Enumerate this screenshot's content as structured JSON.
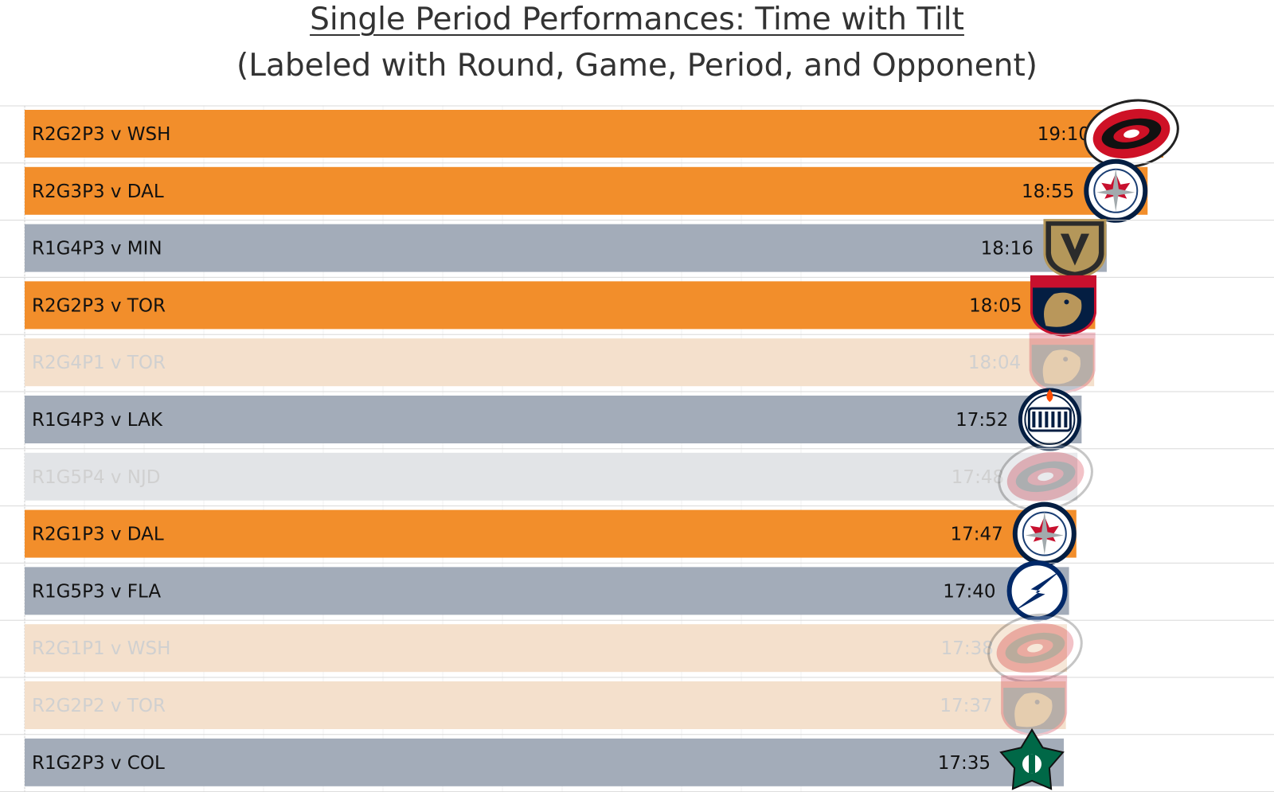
{
  "title": "Single Period Performances: Time with Tilt",
  "subtitle": "(Labeled with Round, Game, Period, and Opponent)",
  "colors": {
    "orange": "#F28E2B",
    "gray": "#A3ACB9",
    "orange_faded": "#F4E0CC",
    "gray_faded": "#E2E4E7",
    "row_line": "#d8d8d8"
  },
  "chart_data": {
    "type": "bar",
    "orientation": "horizontal",
    "title": "Single Period Performances: Time with Tilt",
    "subtitle": "(Labeled with Round, Game, Period, and Opponent)",
    "value_unit": "mm:ss",
    "grid": true,
    "rows": [
      {
        "label": "R2G2P3 v WSH",
        "time": "19:10",
        "seconds": 1150,
        "color": "orange",
        "faded": false,
        "logo": "carolina-hurricanes-logo"
      },
      {
        "label": "R2G3P3 v DAL",
        "time": "18:55",
        "seconds": 1135,
        "color": "orange",
        "faded": false,
        "logo": "winnipeg-jets-logo"
      },
      {
        "label": "R1G4P3 v MIN",
        "time": "18:16",
        "seconds": 1096,
        "color": "gray",
        "faded": false,
        "logo": "vegas-golden-knights-logo"
      },
      {
        "label": "R2G2P3 v TOR",
        "time": "18:05",
        "seconds": 1085,
        "color": "orange",
        "faded": false,
        "logo": "florida-panthers-logo"
      },
      {
        "label": "R2G4P1 v TOR",
        "time": "18:04",
        "seconds": 1084,
        "color": "orange",
        "faded": true,
        "logo": "florida-panthers-logo"
      },
      {
        "label": "R1G4P3 v LAK",
        "time": "17:52",
        "seconds": 1072,
        "color": "gray",
        "faded": false,
        "logo": "edmonton-oilers-logo"
      },
      {
        "label": "R1G5P4 v NJD",
        "time": "17:48",
        "seconds": 1068,
        "color": "gray",
        "faded": true,
        "logo": "carolina-hurricanes-logo"
      },
      {
        "label": "R2G1P3 v DAL",
        "time": "17:47",
        "seconds": 1067,
        "color": "orange",
        "faded": false,
        "logo": "winnipeg-jets-logo"
      },
      {
        "label": "R1G5P3 v FLA",
        "time": "17:40",
        "seconds": 1060,
        "color": "gray",
        "faded": false,
        "logo": "tampa-bay-lightning-logo"
      },
      {
        "label": "R2G1P1 v WSH",
        "time": "17:38",
        "seconds": 1058,
        "color": "orange",
        "faded": true,
        "logo": "carolina-hurricanes-logo"
      },
      {
        "label": "R2G2P2 v TOR",
        "time": "17:37",
        "seconds": 1057,
        "color": "orange",
        "faded": true,
        "logo": "florida-panthers-logo"
      },
      {
        "label": "R1G2P3 v COL",
        "time": "17:35",
        "seconds": 1055,
        "color": "gray",
        "faded": false,
        "logo": "dallas-stars-logo"
      }
    ]
  }
}
